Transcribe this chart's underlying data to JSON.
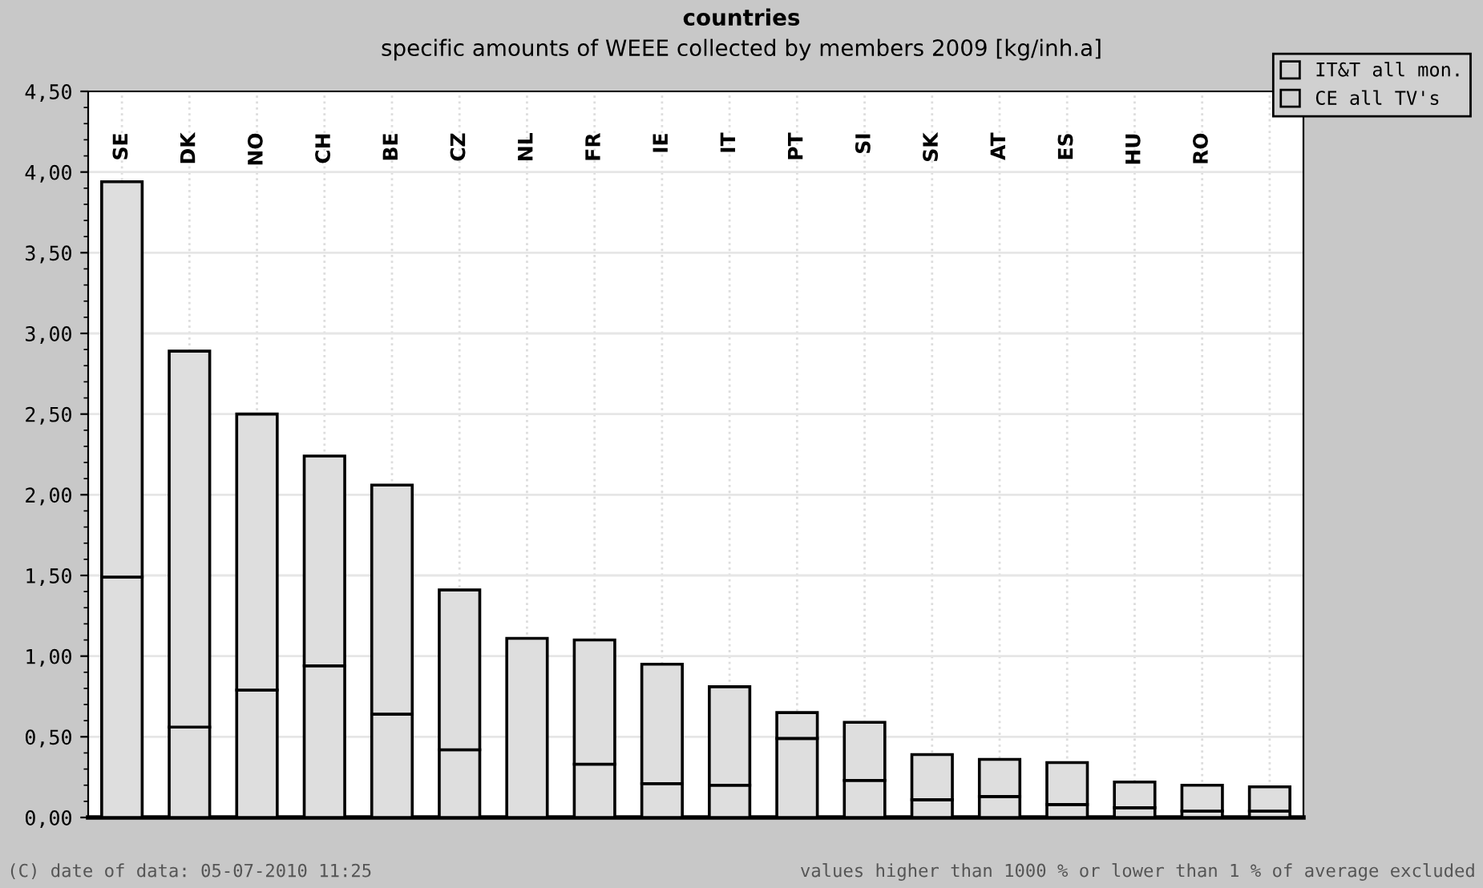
{
  "chart_data": {
    "type": "bar",
    "stacked": true,
    "title": "countries",
    "subtitle": "specific amounts of WEEE collected by members 2009 [kg/inh.a]",
    "categories": [
      "SE",
      "DK",
      "NO",
      "CH",
      "BE",
      "CZ",
      "NL",
      "FR",
      "IE",
      "IT",
      "PT",
      "SI",
      "SK",
      "AT",
      "ES",
      "HU",
      "RO",
      null
    ],
    "series": [
      {
        "name": "IT&T all mon.",
        "color": "#dedede",
        "values": [
          1.49,
          0.56,
          0.79,
          0.94,
          0.64,
          0.42,
          1.11,
          0.33,
          0.21,
          0.2,
          0.49,
          0.23,
          0.11,
          0.13,
          0.08,
          0.06,
          0.04,
          0.04
        ]
      },
      {
        "name": "CE all TV's",
        "color": "#dedede",
        "values": [
          2.45,
          2.33,
          1.71,
          1.3,
          1.42,
          0.99,
          null,
          0.77,
          0.74,
          0.61,
          0.16,
          0.36,
          0.28,
          0.23,
          0.26,
          0.16,
          0.16,
          0.15
        ]
      }
    ],
    "ylim": [
      0,
      4.5
    ],
    "yticks": [
      {
        "value": 0,
        "label": "0,00"
      },
      {
        "value": 0.5,
        "label": "0,50"
      },
      {
        "value": 1,
        "label": "1,00"
      },
      {
        "value": 1.5,
        "label": "1,50"
      },
      {
        "value": 2,
        "label": "2,00"
      },
      {
        "value": 2.5,
        "label": "2,50"
      },
      {
        "value": 3,
        "label": "3,00"
      },
      {
        "value": 3.5,
        "label": "3,50"
      },
      {
        "value": 4,
        "label": "4,00"
      },
      {
        "value": 4.5,
        "label": "4,50"
      }
    ],
    "grid": true,
    "legend": "top right",
    "annotations": [
      "(C) date of data: 05-07-2010 11:25",
      "values higher than 1000 % or lower than 1 % of average excluded"
    ]
  }
}
